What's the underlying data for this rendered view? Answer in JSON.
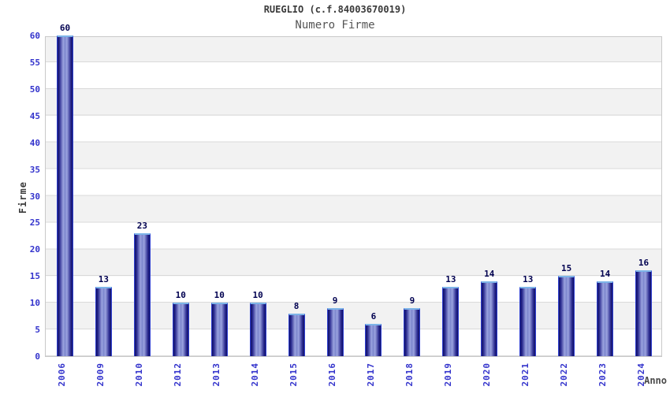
{
  "chart_data": {
    "type": "bar",
    "title": "RUEGLIO (c.f.84003670019)",
    "subtitle": "Numero Firme",
    "xlabel": "Anno",
    "ylabel": "Firme",
    "categories": [
      "2006",
      "2009",
      "2010",
      "2012",
      "2013",
      "2014",
      "2015",
      "2016",
      "2017",
      "2018",
      "2019",
      "2020",
      "2021",
      "2022",
      "2023",
      "2024"
    ],
    "values": [
      60,
      13,
      23,
      10,
      10,
      10,
      8,
      9,
      6,
      9,
      13,
      14,
      13,
      15,
      14,
      16
    ],
    "ylim": [
      0,
      60
    ],
    "ytick_step": 5,
    "grid": "horizontal-bands",
    "legend": "none",
    "colors": {
      "bar_dark": "#101066",
      "bar_light": "#9ba3df",
      "bar_top_edge": "#7db4e8",
      "bar_side_edge": "#2f3fd0",
      "tick_label": "#3333cc",
      "value_label": "#000050",
      "band_gray": "#f2f2f2",
      "gridline": "#d9d9d9",
      "plot_border": "#c9c9c9",
      "title_text": "#3a3a3a",
      "subtitle_text": "#555555"
    }
  }
}
